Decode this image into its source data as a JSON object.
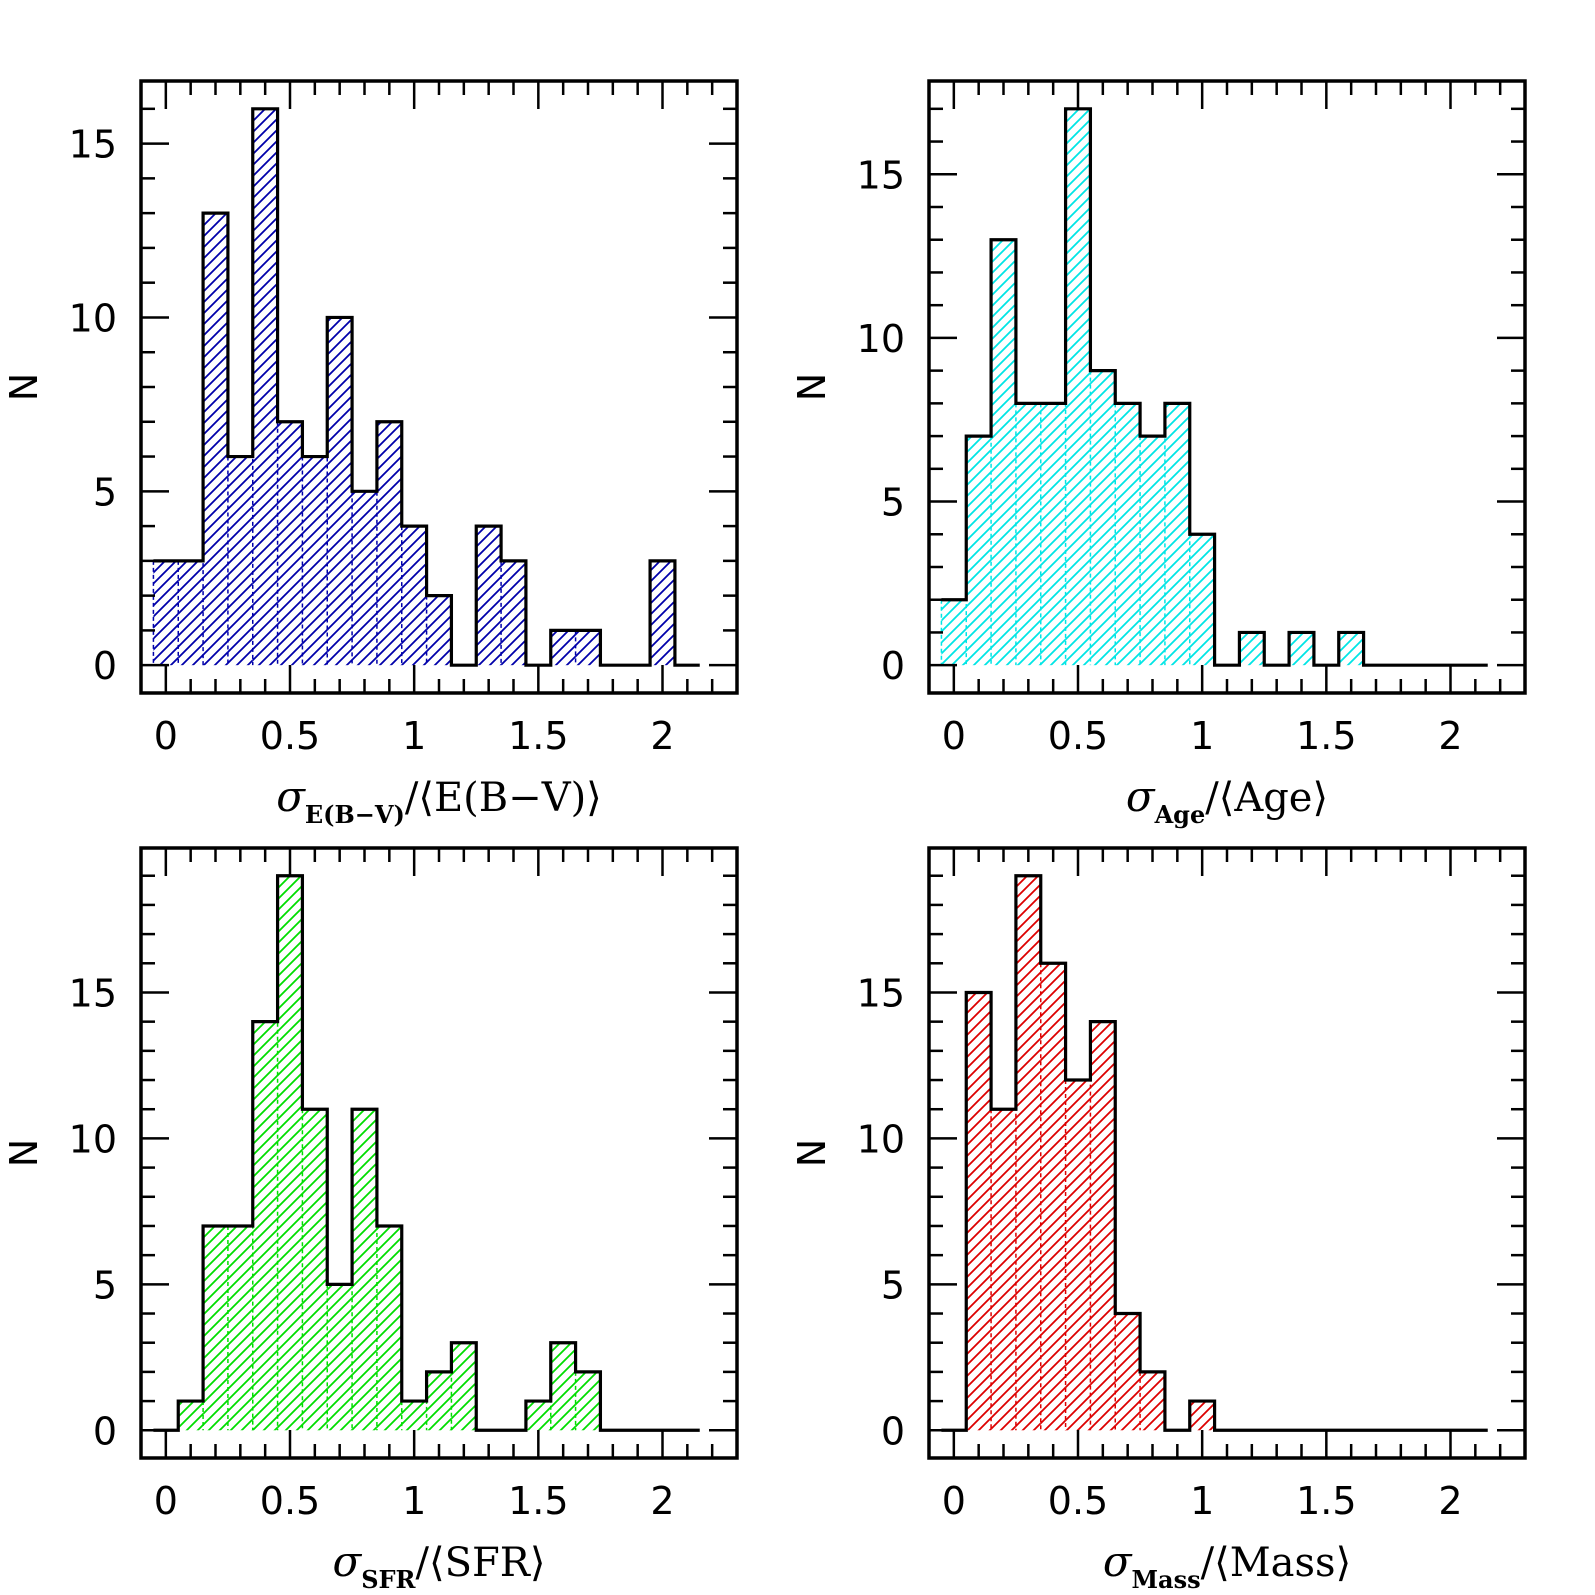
{
  "chart_data": [
    {
      "type": "bar",
      "panel": "top-left",
      "bin_edges_start": -0.05,
      "bin_width": 0.1,
      "values": [
        3,
        3,
        13,
        6,
        16,
        7,
        6,
        10,
        5,
        7,
        4,
        2,
        0,
        4,
        3,
        0,
        1,
        1,
        0,
        0,
        3,
        0
      ],
      "color": "#0000aa",
      "xlim": [
        -0.1,
        2.3
      ],
      "ylim": [
        -0.8,
        16.8
      ],
      "xticks": [
        0,
        0.5,
        1,
        1.5,
        2
      ],
      "xtick_labels": [
        "0",
        "0.5",
        "1",
        "1.5",
        "2"
      ],
      "yticks": [
        0,
        5,
        10,
        15
      ],
      "ytick_labels": [
        "0",
        "5",
        "10",
        "15"
      ],
      "ylabel": "N",
      "xlabel": {
        "symbol": "σ",
        "sub": "E(B−V)",
        "rest": "/⟨E(B−V)⟩"
      }
    },
    {
      "type": "bar",
      "panel": "top-right",
      "bin_edges_start": -0.05,
      "bin_width": 0.1,
      "values": [
        2,
        7,
        13,
        8,
        8,
        17,
        9,
        8,
        7,
        8,
        4,
        0,
        1,
        0,
        1,
        0,
        1,
        0,
        0,
        0,
        0,
        0
      ],
      "color": "#00e5e5",
      "xlim": [
        -0.1,
        2.3
      ],
      "ylim": [
        -0.85,
        17.85
      ],
      "xticks": [
        0,
        0.5,
        1,
        1.5,
        2
      ],
      "xtick_labels": [
        "0",
        "0.5",
        "1",
        "1.5",
        "2"
      ],
      "yticks": [
        0,
        5,
        10,
        15
      ],
      "ytick_labels": [
        "0",
        "5",
        "10",
        "15"
      ],
      "ylabel": "N",
      "xlabel": {
        "symbol": "σ",
        "sub": "Age",
        "rest": "/⟨Age⟩"
      }
    },
    {
      "type": "bar",
      "panel": "bottom-left",
      "bin_edges_start": -0.05,
      "bin_width": 0.1,
      "values": [
        0,
        1,
        7,
        7,
        14,
        19,
        11,
        5,
        11,
        7,
        1,
        2,
        3,
        0,
        0,
        1,
        3,
        2,
        0,
        0,
        0,
        0
      ],
      "color": "#00dd00",
      "xlim": [
        -0.1,
        2.3
      ],
      "ylim": [
        -0.95,
        19.95
      ],
      "xticks": [
        0,
        0.5,
        1,
        1.5,
        2
      ],
      "xtick_labels": [
        "0",
        "0.5",
        "1",
        "1.5",
        "2"
      ],
      "yticks": [
        0,
        5,
        10,
        15
      ],
      "ytick_labels": [
        "0",
        "5",
        "10",
        "15"
      ],
      "ylabel": "N",
      "xlabel": {
        "symbol": "σ",
        "sub": "SFR",
        "rest": "/⟨SFR⟩"
      }
    },
    {
      "type": "bar",
      "panel": "bottom-right",
      "bin_edges_start": -0.05,
      "bin_width": 0.1,
      "values": [
        0,
        15,
        11,
        19,
        16,
        12,
        14,
        4,
        2,
        0,
        1,
        0,
        0,
        0,
        0,
        0,
        0,
        0,
        0,
        0,
        0,
        0
      ],
      "color": "#dd0000",
      "xlim": [
        -0.1,
        2.3
      ],
      "ylim": [
        -0.95,
        19.95
      ],
      "xticks": [
        0,
        0.5,
        1,
        1.5,
        2
      ],
      "xtick_labels": [
        "0",
        "0.5",
        "1",
        "1.5",
        "2"
      ],
      "yticks": [
        0,
        5,
        10,
        15
      ],
      "ytick_labels": [
        "0",
        "5",
        "10",
        "15"
      ],
      "ylabel": "N",
      "xlabel": {
        "symbol": "σ",
        "sub": "Mass",
        "rest": "/⟨Mass⟩"
      }
    }
  ]
}
